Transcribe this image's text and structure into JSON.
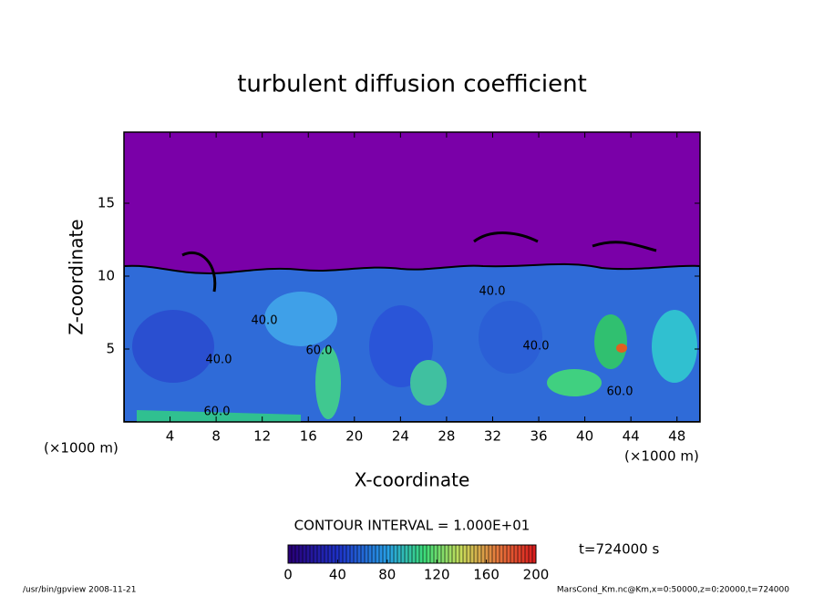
{
  "chart_data": {
    "type": "contour",
    "title": "turbulent diffusion coefficient",
    "x_label": "X-coordinate",
    "y_label": "Z-coordinate",
    "x_unit": "(×1000 m)",
    "y_unit": "(×1000 m)",
    "xlim": [
      0,
      50
    ],
    "xticks": [
      4,
      8,
      12,
      16,
      20,
      24,
      28,
      32,
      36,
      40,
      44,
      48
    ],
    "ylim": [
      0,
      20
    ],
    "yticks": [
      5,
      10,
      15
    ],
    "contour_labels": [
      "60.0",
      "40.0",
      "40.0",
      "60.0",
      "40.0",
      "40.0",
      "60.0"
    ],
    "contour_interval": "CONTOUR INTERVAL = 1.000E+01",
    "time_label": "t=724000 s",
    "colorbar": {
      "lim": [
        0,
        200
      ],
      "ticks": [
        0,
        40,
        80,
        120,
        160,
        200
      ]
    },
    "footer_left": "/usr/bin/gpview  2008-11-21",
    "footer_right": "MarsCond_Km.nc@Km,x=0:50000,z=0:20000,t=724000"
  }
}
